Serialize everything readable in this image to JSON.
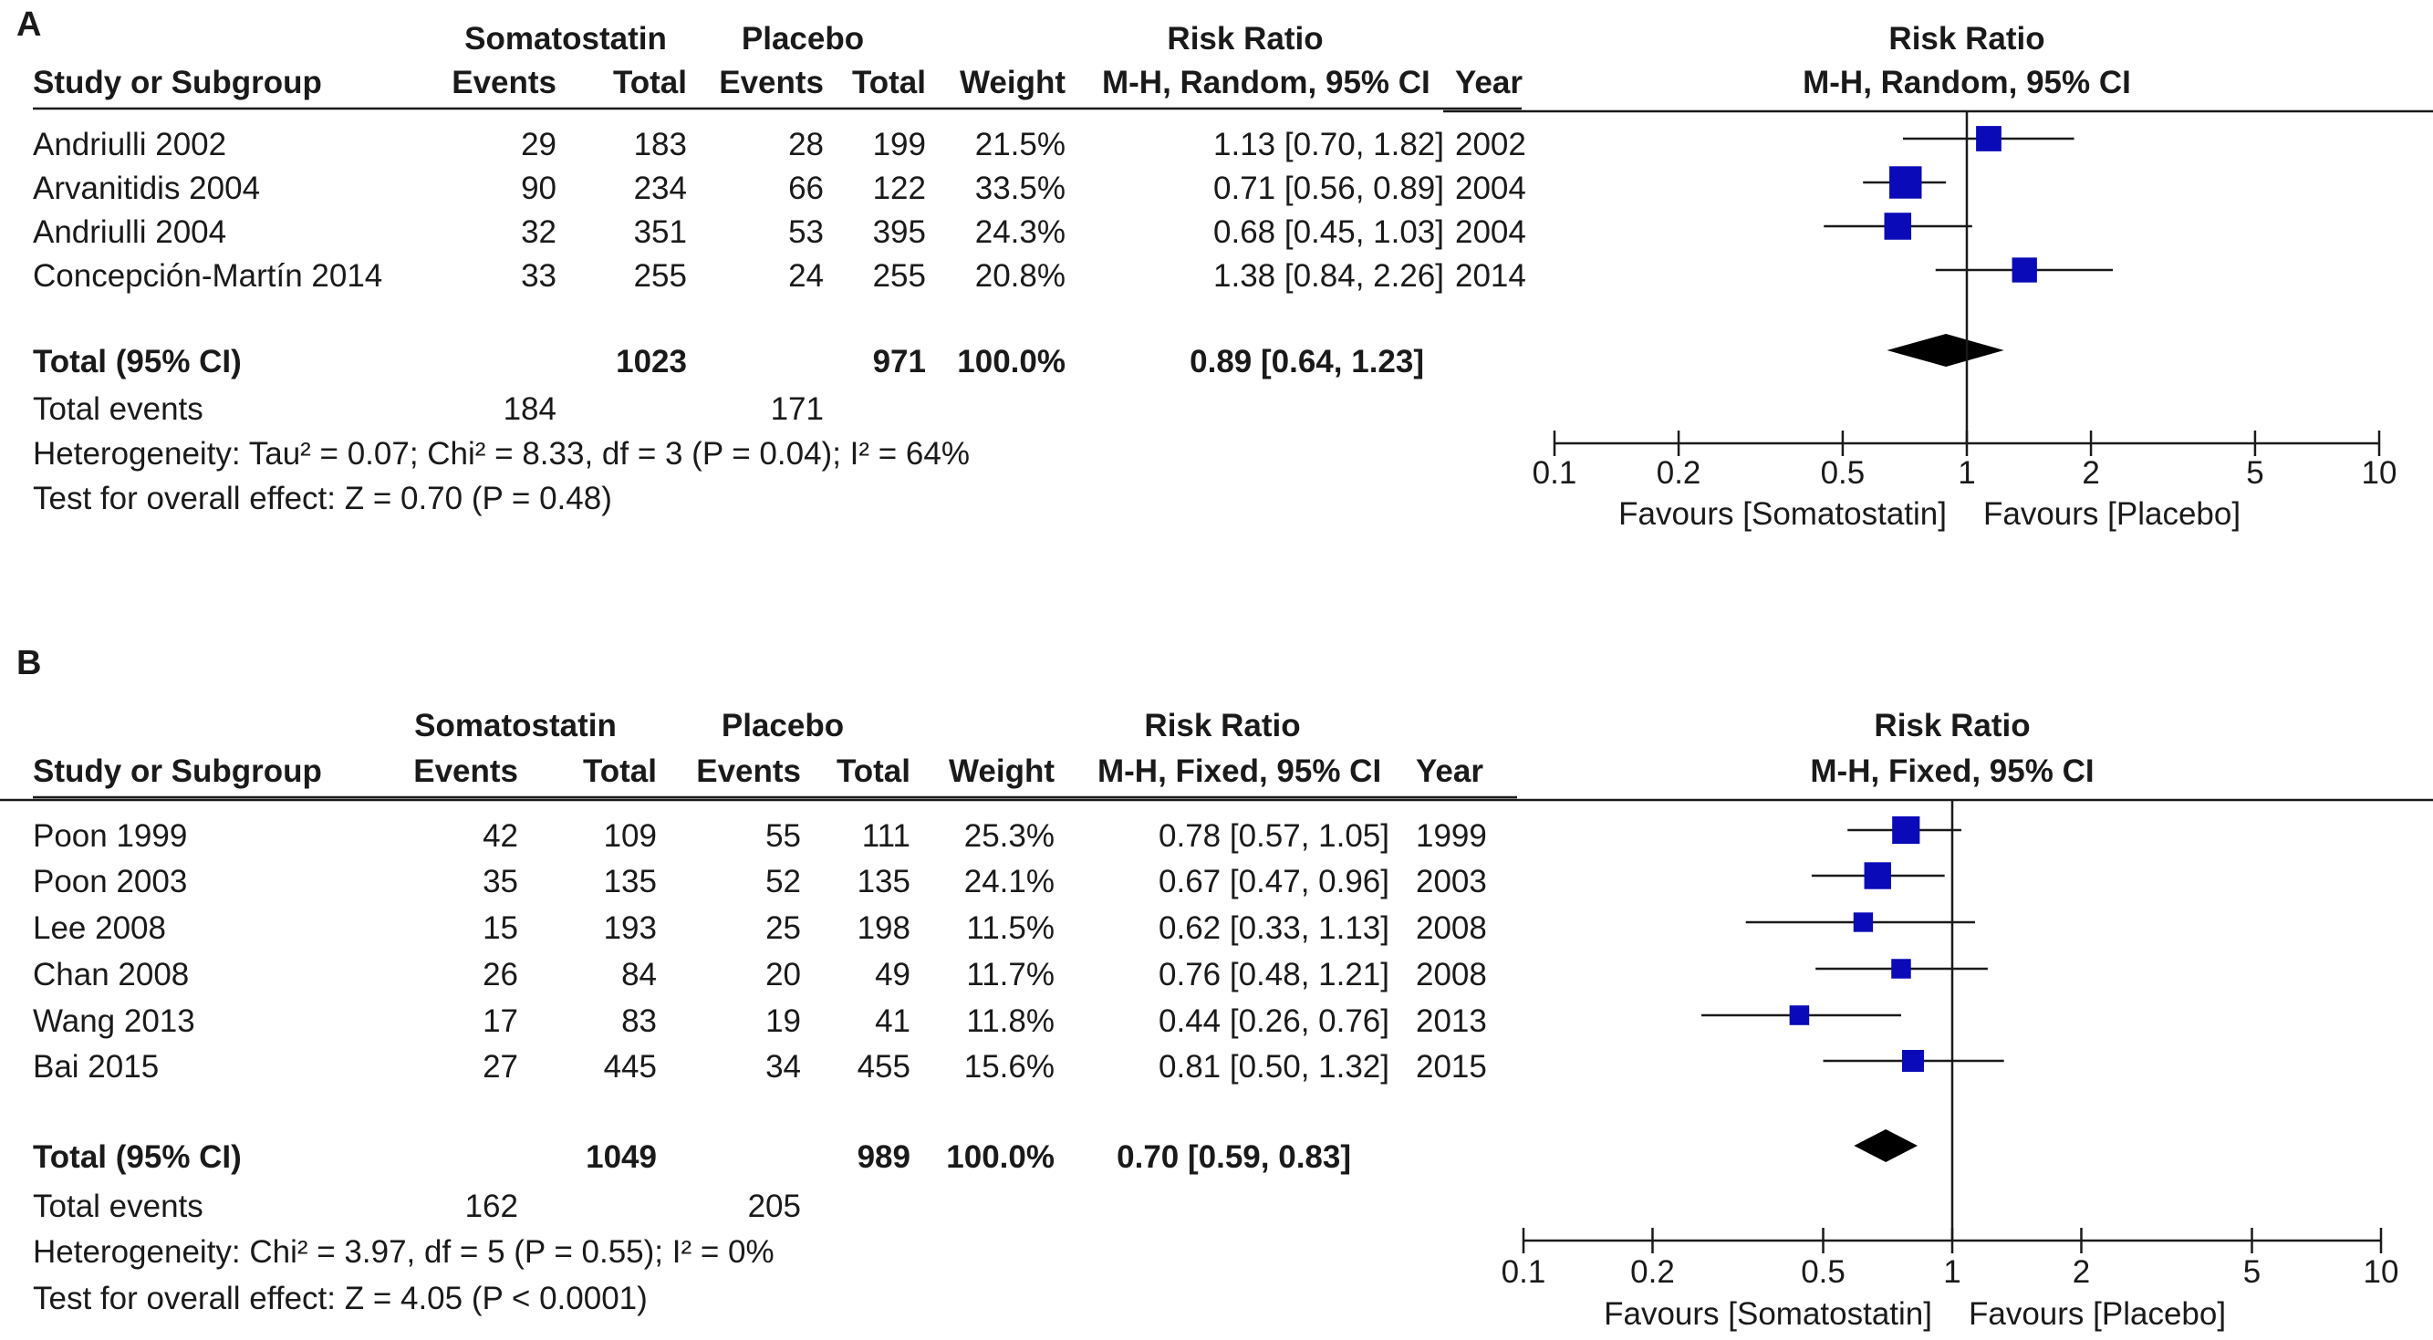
{
  "colors": {
    "marker": "#0a0ab8",
    "line": "#1a1a1a",
    "text": "#1a1a1a"
  },
  "chart_data": [
    {
      "type": "forest",
      "panel_label": "A",
      "group1_label": "Somatostatin",
      "group2_label": "Placebo",
      "header": {
        "study": "Study or Subgroup",
        "events": "Events",
        "total": "Total",
        "weight": "Weight",
        "effect_title": "Risk Ratio",
        "effect_method": "M-H, Random, 95% CI",
        "year": "Year",
        "plot_title": "Risk Ratio",
        "plot_method": "M-H, Random, 95% CI"
      },
      "studies": [
        {
          "name": "Andriulli 2002",
          "e1": "29",
          "n1": "183",
          "e2": "28",
          "n2": "199",
          "weight": "21.5%",
          "ci_text": "1.13 [0.70, 1.82]",
          "year": "2002",
          "rr": 1.13,
          "lo": 0.7,
          "hi": 1.82,
          "w": 21.5
        },
        {
          "name": "Arvanitidis 2004",
          "e1": "90",
          "n1": "234",
          "e2": "66",
          "n2": "122",
          "weight": "33.5%",
          "ci_text": "0.71 [0.56, 0.89]",
          "year": "2004",
          "rr": 0.71,
          "lo": 0.56,
          "hi": 0.89,
          "w": 33.5
        },
        {
          "name": "Andriulli 2004",
          "e1": "32",
          "n1": "351",
          "e2": "53",
          "n2": "395",
          "weight": "24.3%",
          "ci_text": "0.68 [0.45, 1.03]",
          "year": "2004",
          "rr": 0.68,
          "lo": 0.45,
          "hi": 1.03,
          "w": 24.3
        },
        {
          "name": "Concepción-Martín 2014",
          "e1": "33",
          "n1": "255",
          "e2": "24",
          "n2": "255",
          "weight": "20.8%",
          "ci_text": "1.38 [0.84, 2.26]",
          "year": "2014",
          "rr": 1.38,
          "lo": 0.84,
          "hi": 2.26,
          "w": 20.8
        }
      ],
      "total": {
        "label": "Total (95% CI)",
        "n1": "1023",
        "n2": "971",
        "weight": "100.0%",
        "ci_text": "0.89 [0.64, 1.23]",
        "rr": 0.89,
        "lo": 0.64,
        "hi": 1.23
      },
      "total_events": {
        "label": "Total events",
        "e1": "184",
        "e2": "171"
      },
      "heterogeneity": "Heterogeneity: Tau² = 0.07; Chi² = 8.33, df = 3 (P = 0.04); I² = 64%",
      "overall_effect": "Test for overall effect: Z = 0.70 (P = 0.48)",
      "axis": {
        "scale": "log",
        "xlim": [
          0.1,
          10
        ],
        "ticks": [
          0.1,
          0.2,
          0.5,
          1,
          2,
          5,
          10
        ],
        "tick_labels": [
          "0.1",
          "0.2",
          "0.5",
          "1",
          "2",
          "5",
          "10"
        ]
      },
      "favours_left": "Favours [Somatostatin]",
      "favours_right": "Favours [Placebo]"
    },
    {
      "type": "forest",
      "panel_label": "B",
      "group1_label": "Somatostatin",
      "group2_label": "Placebo",
      "header": {
        "study": "Study or Subgroup",
        "events": "Events",
        "total": "Total",
        "weight": "Weight",
        "effect_title": "Risk Ratio",
        "effect_method": "M-H, Fixed, 95% CI",
        "year": "Year",
        "plot_title": "Risk Ratio",
        "plot_method": "M-H, Fixed, 95% CI"
      },
      "studies": [
        {
          "name": "Poon 1999",
          "e1": "42",
          "n1": "109",
          "e2": "55",
          "n2": "111",
          "weight": "25.3%",
          "ci_text": "0.78 [0.57, 1.05]",
          "year": "1999",
          "rr": 0.78,
          "lo": 0.57,
          "hi": 1.05,
          "w": 25.3
        },
        {
          "name": "Poon 2003",
          "e1": "35",
          "n1": "135",
          "e2": "52",
          "n2": "135",
          "weight": "24.1%",
          "ci_text": "0.67 [0.47, 0.96]",
          "year": "2003",
          "rr": 0.67,
          "lo": 0.47,
          "hi": 0.96,
          "w": 24.1
        },
        {
          "name": "Lee 2008",
          "e1": "15",
          "n1": "193",
          "e2": "25",
          "n2": "198",
          "weight": "11.5%",
          "ci_text": "0.62 [0.33, 1.13]",
          "year": "2008",
          "rr": 0.62,
          "lo": 0.33,
          "hi": 1.13,
          "w": 11.5
        },
        {
          "name": "Chan 2008",
          "e1": "26",
          "n1": "84",
          "e2": "20",
          "n2": "49",
          "weight": "11.7%",
          "ci_text": "0.76 [0.48, 1.21]",
          "year": "2008",
          "rr": 0.76,
          "lo": 0.48,
          "hi": 1.21,
          "w": 11.7
        },
        {
          "name": "Wang 2013",
          "e1": "17",
          "n1": "83",
          "e2": "19",
          "n2": "41",
          "weight": "11.8%",
          "ci_text": "0.44 [0.26, 0.76]",
          "year": "2013",
          "rr": 0.44,
          "lo": 0.26,
          "hi": 0.76,
          "w": 11.8
        },
        {
          "name": "Bai 2015",
          "e1": "27",
          "n1": "445",
          "e2": "34",
          "n2": "455",
          "weight": "15.6%",
          "ci_text": "0.81 [0.50, 1.32]",
          "year": "2015",
          "rr": 0.81,
          "lo": 0.5,
          "hi": 1.32,
          "w": 15.6
        }
      ],
      "total": {
        "label": "Total (95% CI)",
        "n1": "1049",
        "n2": "989",
        "weight": "100.0%",
        "ci_text": "0.70 [0.59, 0.83]",
        "rr": 0.7,
        "lo": 0.59,
        "hi": 0.83
      },
      "total_events": {
        "label": "Total events",
        "e1": "162",
        "e2": "205"
      },
      "heterogeneity": "Heterogeneity: Chi² = 3.97, df = 5 (P = 0.55); I² = 0%",
      "overall_effect": "Test for overall effect: Z = 4.05 (P < 0.0001)",
      "axis": {
        "scale": "log",
        "xlim": [
          0.1,
          10
        ],
        "ticks": [
          0.1,
          0.2,
          0.5,
          1,
          2,
          5,
          10
        ],
        "tick_labels": [
          "0.1",
          "0.2",
          "0.5",
          "1",
          "2",
          "5",
          "10"
        ]
      },
      "favours_left": "Favours [Somatostatin]",
      "favours_right": "Favours [Placebo]"
    }
  ]
}
